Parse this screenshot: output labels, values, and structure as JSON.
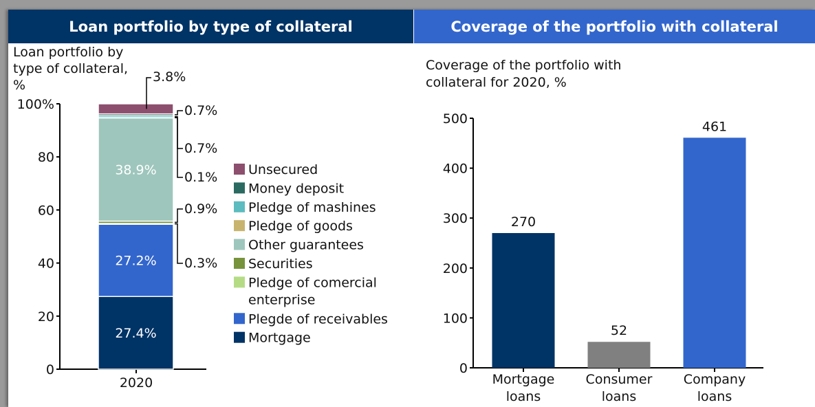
{
  "headers": {
    "left": "Loan portfolio by type of collateral",
    "right": "Coverage of the portfolio with collateral"
  },
  "colors": {
    "Mortgage": "#003366",
    "Plegde of receivables": "#3366cc",
    "Pledge of comercial enterprise": "#b5dc85",
    "Securities": "#77933c",
    "Other guarantees": "#9ec6bc",
    "Pledge of goods": "#c8b46e",
    "Pledge of mashines": "#5cbcbf",
    "Money deposit": "#2a6a60",
    "Unsecured": "#8d4f6e",
    "bar_gray": "#808080"
  },
  "chart_data": [
    {
      "type": "bar",
      "stacked": true,
      "title": "Loan portfolio by type of collateral, %",
      "title_lines": [
        "Loan portfolio by",
        "type of collateral,",
        "%"
      ],
      "categories": [
        "2020"
      ],
      "ylim": [
        0,
        100
      ],
      "yticks": [
        "0",
        "20",
        "40",
        "60",
        "80",
        "100%"
      ],
      "series": [
        {
          "name": "Mortgage",
          "values": [
            27.4
          ],
          "label": "27.4%"
        },
        {
          "name": "Plegde of receivables",
          "values": [
            27.2
          ],
          "label": "27.2%"
        },
        {
          "name": "Pledge of comercial enterprise",
          "values": [
            0.3
          ],
          "label": "0.3%"
        },
        {
          "name": "Securities",
          "values": [
            0.9
          ],
          "label": "0.9%"
        },
        {
          "name": "Other guarantees",
          "values": [
            38.9
          ],
          "label": "38.9%"
        },
        {
          "name": "Pledge of goods",
          "values": [
            0.1
          ],
          "label": "0.1%"
        },
        {
          "name": "Pledge of mashines",
          "values": [
            0.7
          ],
          "label": "0.7%"
        },
        {
          "name": "Money deposit",
          "values": [
            0.7
          ],
          "label": "0.7%"
        },
        {
          "name": "Unsecured",
          "values": [
            3.8
          ],
          "label": "3.8%"
        }
      ],
      "legend": [
        "Unsecured",
        "Money deposit",
        "Pledge of mashines",
        "Pledge of goods",
        "Other guarantees",
        "Securities",
        "Pledge of comercial enterprise",
        "Plegde of receivables",
        "Mortgage"
      ],
      "legend_placement": "right"
    },
    {
      "type": "bar",
      "title": "Coverage of the portfolio with collateral for 2020, %",
      "title_lines": [
        "Coverage of the portfolio with",
        "collateral for 2020, %"
      ],
      "categories": [
        [
          "Mortgage",
          "loans"
        ],
        [
          "Consumer",
          "loans"
        ],
        [
          "Company",
          "loans"
        ]
      ],
      "values": [
        270,
        52,
        461
      ],
      "ylim": [
        0,
        500
      ],
      "yticks": [
        "0",
        "100",
        "200",
        "300",
        "400",
        "500"
      ]
    }
  ]
}
